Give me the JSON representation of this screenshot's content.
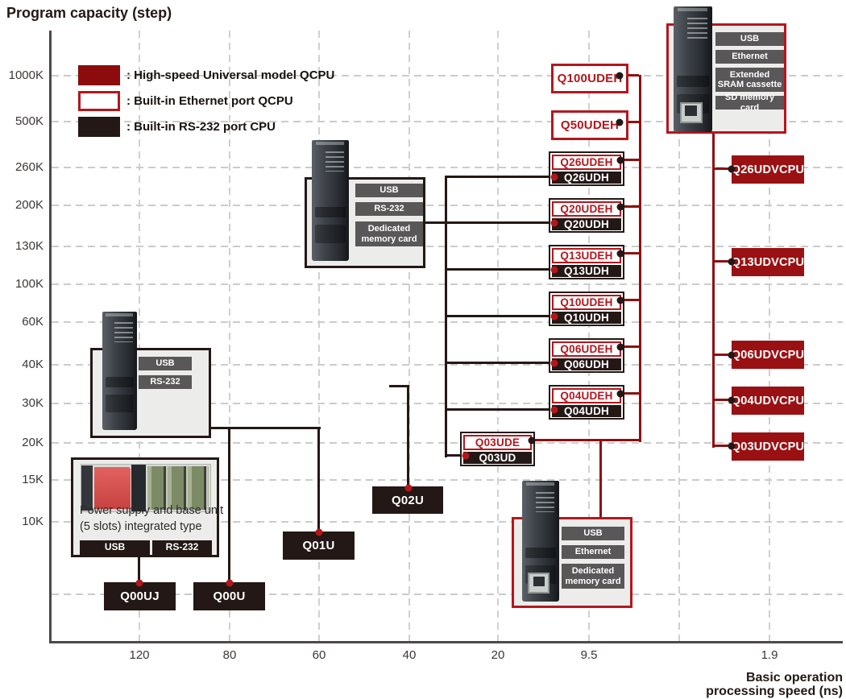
{
  "title": "Program capacity (step)",
  "y_axis": {
    "ticks": [
      "1000K",
      "500K",
      "260K",
      "200K",
      "130K",
      "100K",
      "60K",
      "40K",
      "30K",
      "20K",
      "15K",
      "10K"
    ]
  },
  "x_axis": {
    "ticks": [
      "120",
      "80",
      "60",
      "40",
      "20",
      "9.5",
      "1.9"
    ],
    "label_line1": "Basic operation",
    "label_line2": "processing speed (ns)"
  },
  "legend": {
    "items": [
      {
        "label": ": High-speed Universal model QCPU",
        "swatch": "high-speed-filled-red"
      },
      {
        "label": ": Built-in Ethernet port QCPU",
        "swatch": "white-red-outline"
      },
      {
        "label": ": Built-in RS-232 port CPU",
        "swatch": "filled-black"
      }
    ]
  },
  "colors": {
    "high_speed_red": "#8c0b0d",
    "udv_box_red": "#9a1113",
    "connector_red": "#8f1012",
    "ethernet_border_red": "#b5161c",
    "rs232_black": "#231815",
    "feature_tag_gray": "#595757",
    "panel_bg": "#ececea",
    "grid_gray": "#cbcbcb",
    "axis_gray": "#4c4948"
  },
  "products": [
    {
      "id": "top-right",
      "features": [
        "USB",
        "Ethernet",
        "Extended SRAM cassette",
        "SD memory card"
      ]
    },
    {
      "id": "top-middle",
      "features": [
        "USB",
        "RS-232",
        "Dedicated memory card"
      ]
    },
    {
      "id": "left",
      "features": [
        "USB",
        "RS-232"
      ]
    },
    {
      "id": "power-base",
      "caption_line1": "Power supply and base unit",
      "caption_line2": "(5 slots) integrated type",
      "features": [
        "USB",
        "RS-232"
      ]
    },
    {
      "id": "bottom-middle",
      "features": [
        "USB",
        "Ethernet",
        "Dedicated memory card"
      ]
    }
  ],
  "models": {
    "ethernet_only": [
      "Q100UDEH",
      "Q50UDEH"
    ],
    "pairs": [
      {
        "ethernet": "Q26UDEH",
        "rs232": "Q26UDH"
      },
      {
        "ethernet": "Q20UDEH",
        "rs232": "Q20UDH"
      },
      {
        "ethernet": "Q13UDEH",
        "rs232": "Q13UDH"
      },
      {
        "ethernet": "Q10UDEH",
        "rs232": "Q10UDH"
      },
      {
        "ethernet": "Q06UDEH",
        "rs232": "Q06UDH"
      },
      {
        "ethernet": "Q04UDEH",
        "rs232": "Q04UDH"
      },
      {
        "ethernet": "Q03UDE",
        "rs232": "Q03UD"
      }
    ],
    "rs232_only": [
      "Q02U",
      "Q01U",
      "Q00U",
      "Q00UJ"
    ],
    "high_speed": [
      "Q26UDVCPU",
      "Q13UDVCPU",
      "Q06UDVCPU",
      "Q04UDVCPU",
      "Q03UDVCPU"
    ]
  },
  "chart_data": {
    "type": "scatter",
    "title": "Program capacity (step)",
    "xlabel": "Basic operation processing speed (ns)",
    "ylabel": "Program capacity (step)",
    "x_ticks": [
      120,
      80,
      60,
      40,
      20,
      9.5,
      1.9
    ],
    "x_axis_reversed": true,
    "y_tick_labels": [
      "1000K",
      "500K",
      "260K",
      "200K",
      "130K",
      "100K",
      "60K",
      "40K",
      "30K",
      "20K",
      "15K",
      "10K"
    ],
    "grid": true,
    "legend_position": "top-left",
    "capacity_unit": "K steps",
    "series": [
      {
        "name": "Built-in RS-232 port CPU",
        "points": [
          {
            "model": "Q00UJ",
            "speed_ns": 120,
            "capacity_k_steps": 10
          },
          {
            "model": "Q00U",
            "speed_ns": 80,
            "capacity_k_steps": 10
          },
          {
            "model": "Q01U",
            "speed_ns": 60,
            "capacity_k_steps": 15
          },
          {
            "model": "Q02U",
            "speed_ns": 40,
            "capacity_k_steps": 20
          },
          {
            "model": "Q03UD",
            "speed_ns": 20,
            "capacity_k_steps": 30
          },
          {
            "model": "Q04UDH",
            "speed_ns": 9.5,
            "capacity_k_steps": 40
          },
          {
            "model": "Q06UDH",
            "speed_ns": 9.5,
            "capacity_k_steps": 60
          },
          {
            "model": "Q10UDH",
            "speed_ns": 9.5,
            "capacity_k_steps": 100
          },
          {
            "model": "Q13UDH",
            "speed_ns": 9.5,
            "capacity_k_steps": 130
          },
          {
            "model": "Q20UDH",
            "speed_ns": 9.5,
            "capacity_k_steps": 200
          },
          {
            "model": "Q26UDH",
            "speed_ns": 9.5,
            "capacity_k_steps": 260
          }
        ]
      },
      {
        "name": "Built-in Ethernet port QCPU",
        "points": [
          {
            "model": "Q03UDE",
            "speed_ns": 20,
            "capacity_k_steps": 30
          },
          {
            "model": "Q04UDEH",
            "speed_ns": 9.5,
            "capacity_k_steps": 40
          },
          {
            "model": "Q06UDEH",
            "speed_ns": 9.5,
            "capacity_k_steps": 60
          },
          {
            "model": "Q10UDEH",
            "speed_ns": 9.5,
            "capacity_k_steps": 100
          },
          {
            "model": "Q13UDEH",
            "speed_ns": 9.5,
            "capacity_k_steps": 130
          },
          {
            "model": "Q20UDEH",
            "speed_ns": 9.5,
            "capacity_k_steps": 200
          },
          {
            "model": "Q26UDEH",
            "speed_ns": 9.5,
            "capacity_k_steps": 260
          },
          {
            "model": "Q50UDEH",
            "speed_ns": 9.5,
            "capacity_k_steps": 500
          },
          {
            "model": "Q100UDEH",
            "speed_ns": 9.5,
            "capacity_k_steps": 1000
          }
        ]
      },
      {
        "name": "High-speed Universal model QCPU",
        "points": [
          {
            "model": "Q03UDVCPU",
            "speed_ns": 1.9,
            "capacity_k_steps": 30
          },
          {
            "model": "Q04UDVCPU",
            "speed_ns": 1.9,
            "capacity_k_steps": 40
          },
          {
            "model": "Q06UDVCPU",
            "speed_ns": 1.9,
            "capacity_k_steps": 60
          },
          {
            "model": "Q13UDVCPU",
            "speed_ns": 1.9,
            "capacity_k_steps": 130
          },
          {
            "model": "Q26UDVCPU",
            "speed_ns": 1.9,
            "capacity_k_steps": 260
          }
        ]
      }
    ]
  }
}
